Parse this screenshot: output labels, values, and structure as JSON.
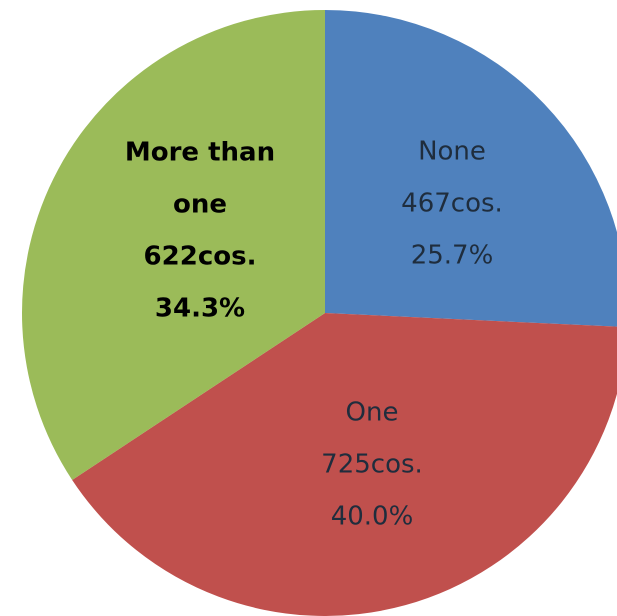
{
  "chart_data": {
    "type": "pie",
    "title": "",
    "slices": [
      {
        "name": "None",
        "count_label": "467cos.",
        "percent_label": "25.7%",
        "value": 467,
        "percent": 25.7,
        "color": "#4f81bd",
        "label_bold": false,
        "name_lines": [
          "None"
        ]
      },
      {
        "name": "One",
        "count_label": "725cos.",
        "percent_label": "40.0%",
        "value": 725,
        "percent": 40.0,
        "color": "#c0504d",
        "label_bold": false,
        "name_lines": [
          "One"
        ]
      },
      {
        "name": "More than one",
        "count_label": "622cos.",
        "percent_label": "34.3%",
        "value": 622,
        "percent": 34.3,
        "color": "#9bbb59",
        "label_bold": true,
        "name_lines": [
          "More than",
          "one"
        ]
      }
    ],
    "start_angle_deg": 0,
    "direction": "clockwise",
    "legend": "none"
  }
}
